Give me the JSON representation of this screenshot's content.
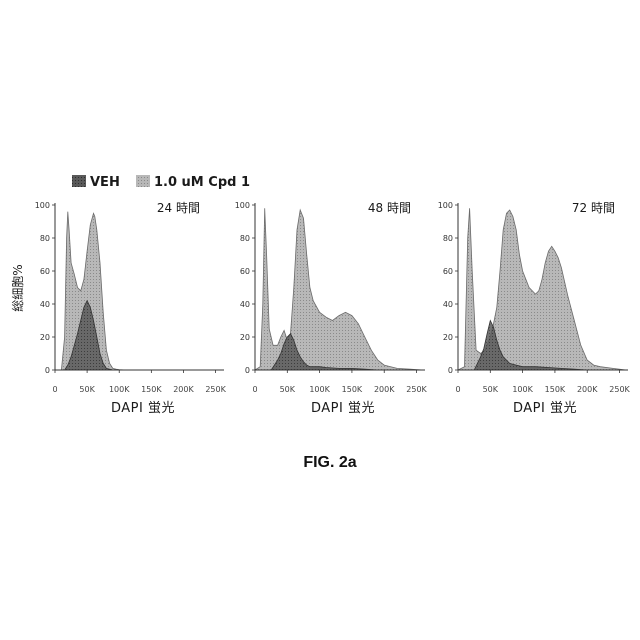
{
  "figure_label": "FIG. 2a",
  "colors": {
    "veh": "#555555",
    "cpd": "#b8b8b8",
    "axis": "#333333"
  },
  "legend": [
    {
      "name": "VEH",
      "color": "#555555"
    },
    {
      "name": "1.0 uM Cpd 1",
      "color": "#b8b8b8"
    }
  ],
  "chart_data": [
    {
      "type": "area",
      "title": "24 時間",
      "xlabel": "DAPI 蛍光",
      "ylabel": "総細胞%",
      "xlim": [
        0,
        260
      ],
      "ylim": [
        0,
        100
      ],
      "x_ticks": [
        "0",
        "50K",
        "100K",
        "150K",
        "200K",
        "250K"
      ],
      "x_tick_values": [
        0,
        50,
        100,
        150,
        200,
        250
      ],
      "y_ticks": [
        "0",
        "20",
        "40",
        "60",
        "80",
        "100"
      ],
      "y_tick_values": [
        0,
        20,
        40,
        60,
        80,
        100
      ],
      "grid": false,
      "series": [
        {
          "name": "1.0 uM Cpd 1",
          "x": [
            10,
            15,
            18,
            20,
            22,
            25,
            30,
            35,
            40,
            45,
            50,
            55,
            60,
            62,
            65,
            70,
            75,
            80,
            85,
            90,
            95,
            100,
            110,
            130,
            260
          ],
          "y": [
            0,
            20,
            80,
            96,
            85,
            65,
            58,
            50,
            48,
            55,
            72,
            88,
            95,
            93,
            85,
            65,
            35,
            12,
            4,
            1,
            0.5,
            0.2,
            0,
            0,
            0
          ]
        },
        {
          "name": "VEH",
          "x": [
            15,
            20,
            25,
            30,
            35,
            40,
            45,
            50,
            55,
            60,
            65,
            70,
            75,
            80,
            90,
            260
          ],
          "y": [
            0,
            3,
            8,
            15,
            22,
            30,
            38,
            42,
            38,
            30,
            20,
            10,
            4,
            1,
            0,
            0
          ]
        }
      ]
    },
    {
      "type": "area",
      "title": "48 時間",
      "xlabel": "DAPI 蛍光",
      "xlim": [
        0,
        260
      ],
      "ylim": [
        0,
        100
      ],
      "x_ticks": [
        "0",
        "50K",
        "100K",
        "150K",
        "200K",
        "250K"
      ],
      "x_tick_values": [
        0,
        50,
        100,
        150,
        200,
        250
      ],
      "y_ticks": [
        "0",
        "20",
        "40",
        "60",
        "80",
        "100"
      ],
      "y_tick_values": [
        0,
        20,
        40,
        60,
        80,
        100
      ],
      "grid": false,
      "series": [
        {
          "name": "1.0 uM Cpd 1",
          "x": [
            0,
            8,
            12,
            15,
            18,
            22,
            28,
            35,
            40,
            45,
            50,
            55,
            60,
            65,
            70,
            75,
            80,
            85,
            90,
            100,
            110,
            120,
            130,
            140,
            150,
            160,
            170,
            180,
            190,
            200,
            220,
            240,
            260
          ],
          "y": [
            0,
            2,
            40,
            98,
            70,
            25,
            15,
            15,
            20,
            24,
            18,
            22,
            50,
            85,
            97,
            92,
            70,
            50,
            42,
            35,
            32,
            30,
            33,
            35,
            33,
            28,
            20,
            12,
            6,
            3,
            1,
            0.5,
            0
          ]
        },
        {
          "name": "VEH",
          "x": [
            25,
            30,
            35,
            40,
            45,
            50,
            55,
            60,
            65,
            70,
            75,
            80,
            85,
            90,
            95,
            100,
            110,
            130,
            150,
            170,
            190,
            260
          ],
          "y": [
            0,
            3,
            6,
            10,
            16,
            20,
            22,
            18,
            12,
            8,
            5,
            3,
            2,
            2,
            2,
            2,
            1.5,
            1,
            1,
            0.5,
            0,
            0
          ]
        }
      ]
    },
    {
      "type": "area",
      "title": "72 時間",
      "xlabel": "DAPI 蛍光",
      "xlim": [
        0,
        260
      ],
      "ylim": [
        0,
        100
      ],
      "x_ticks": [
        "0",
        "50K",
        "100K",
        "150K",
        "200K",
        "250K"
      ],
      "x_tick_values": [
        0,
        50,
        100,
        150,
        200,
        250
      ],
      "y_ticks": [
        "0",
        "20",
        "40",
        "60",
        "80",
        "100"
      ],
      "y_tick_values": [
        0,
        20,
        40,
        60,
        80,
        100
      ],
      "grid": false,
      "series": [
        {
          "name": "1.0 uM Cpd 1",
          "x": [
            0,
            10,
            15,
            18,
            22,
            28,
            35,
            42,
            50,
            55,
            60,
            65,
            70,
            75,
            80,
            85,
            90,
            95,
            100,
            110,
            120,
            125,
            130,
            135,
            140,
            145,
            150,
            155,
            160,
            170,
            180,
            190,
            200,
            210,
            220,
            240,
            260
          ],
          "y": [
            0,
            2,
            80,
            98,
            60,
            12,
            10,
            12,
            20,
            28,
            38,
            60,
            85,
            95,
            97,
            93,
            85,
            70,
            60,
            50,
            46,
            48,
            55,
            65,
            72,
            75,
            72,
            68,
            62,
            45,
            30,
            15,
            6,
            3,
            2,
            1,
            0
          ]
        },
        {
          "name": "VEH",
          "x": [
            25,
            30,
            35,
            40,
            45,
            50,
            55,
            60,
            65,
            70,
            75,
            80,
            90,
            100,
            120,
            140,
            160,
            180,
            200,
            260
          ],
          "y": [
            0,
            4,
            8,
            13,
            22,
            30,
            26,
            18,
            12,
            8,
            6,
            4,
            3,
            2,
            2,
            1.5,
            1,
            0.5,
            0,
            0
          ]
        }
      ]
    }
  ]
}
